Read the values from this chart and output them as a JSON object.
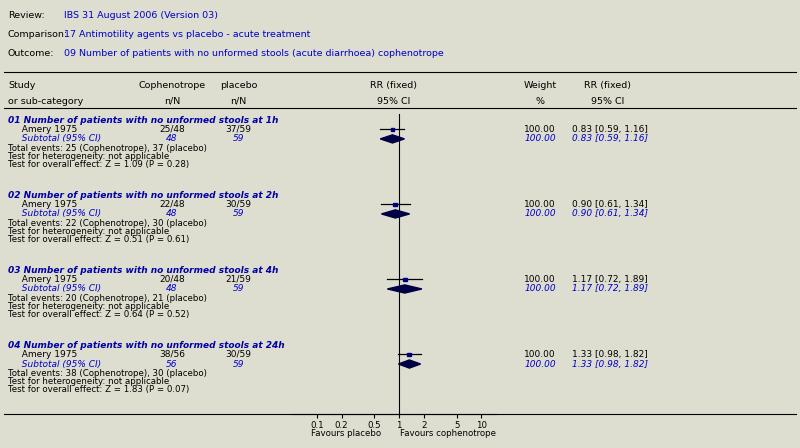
{
  "header_lines": [
    [
      "Review:",
      "IBS 31 August 2006 (Version 03)"
    ],
    [
      "Comparison:",
      "17 Antimotility agents vs placebo - acute treatment"
    ],
    [
      "Outcome:",
      "09 Number of patients with no unformed stools (acute diarrhoea) cophenotrope"
    ]
  ],
  "groups": [
    {
      "title": "01 Number of patients with no unformed stools at 1h",
      "study": "Amery 1975",
      "cophenotrope_frac": "25/48",
      "placebo_frac": "37/59",
      "rr": 0.83,
      "ci_low": 0.59,
      "ci_high": 1.16,
      "weight": "100.00",
      "subtotal_cop": "48",
      "subtotal_plac": "59",
      "total_events": "Total events: 25 (Cophenotrope), 37 (placebo)",
      "heterogeneity": "Test for heterogeneity: not applicable",
      "overall": "Test for overall effect: Z = 1.09 (P = 0.28)"
    },
    {
      "title": "02 Number of patients with no unformed stools at 2h",
      "study": "Amery 1975",
      "cophenotrope_frac": "22/48",
      "placebo_frac": "30/59",
      "rr": 0.9,
      "ci_low": 0.61,
      "ci_high": 1.34,
      "weight": "100.00",
      "subtotal_cop": "48",
      "subtotal_plac": "59",
      "total_events": "Total events: 22 (Cophenotrope), 30 (placebo)",
      "heterogeneity": "Test for heterogeneity: not applicable",
      "overall": "Test for overall effect: Z = 0.51 (P = 0.61)"
    },
    {
      "title": "03 Number of patients with no unformed stools at 4h",
      "study": "Amery 1975",
      "cophenotrope_frac": "20/48",
      "placebo_frac": "21/59",
      "rr": 1.17,
      "ci_low": 0.72,
      "ci_high": 1.89,
      "weight": "100.00",
      "subtotal_cop": "48",
      "subtotal_plac": "59",
      "total_events": "Total events: 20 (Cophenotrope), 21 (placebo)",
      "heterogeneity": "Test for heterogeneity: not applicable",
      "overall": "Test for overall effect: Z = 0.64 (P = 0.52)"
    },
    {
      "title": "04 Number of patients with no unformed stools at 24h",
      "study": "Amery 1975",
      "cophenotrope_frac": "38/56",
      "placebo_frac": "30/59",
      "rr": 1.33,
      "ci_low": 0.98,
      "ci_high": 1.82,
      "weight": "100.00",
      "subtotal_cop": "56",
      "subtotal_plac": "59",
      "total_events": "Total events: 38 (Cophenotrope), 30 (placebo)",
      "heterogeneity": "Test for heterogeneity: not applicable",
      "overall": "Test for overall effect: Z = 1.83 (P = 0.07)"
    }
  ],
  "x_ticks": [
    0.1,
    0.2,
    0.5,
    1,
    2,
    5,
    10
  ],
  "x_tick_labels": [
    "0.1",
    "0.2",
    "0.5",
    "1",
    "2",
    "5",
    "10"
  ],
  "x_label_left": "Favours placebo",
  "x_label_right": "Favours cophenotrope",
  "x_min": 0.05,
  "x_max": 15,
  "bg_color": "#deded0",
  "header_color": "#0000cc",
  "study_color": "#000000",
  "subtotal_color": "#0000cc",
  "group_title_color": "#0000aa",
  "diamond_color": "#000044",
  "square_color": "#000080",
  "line_color": "#000000",
  "fig_width": 8.0,
  "fig_height": 4.48
}
